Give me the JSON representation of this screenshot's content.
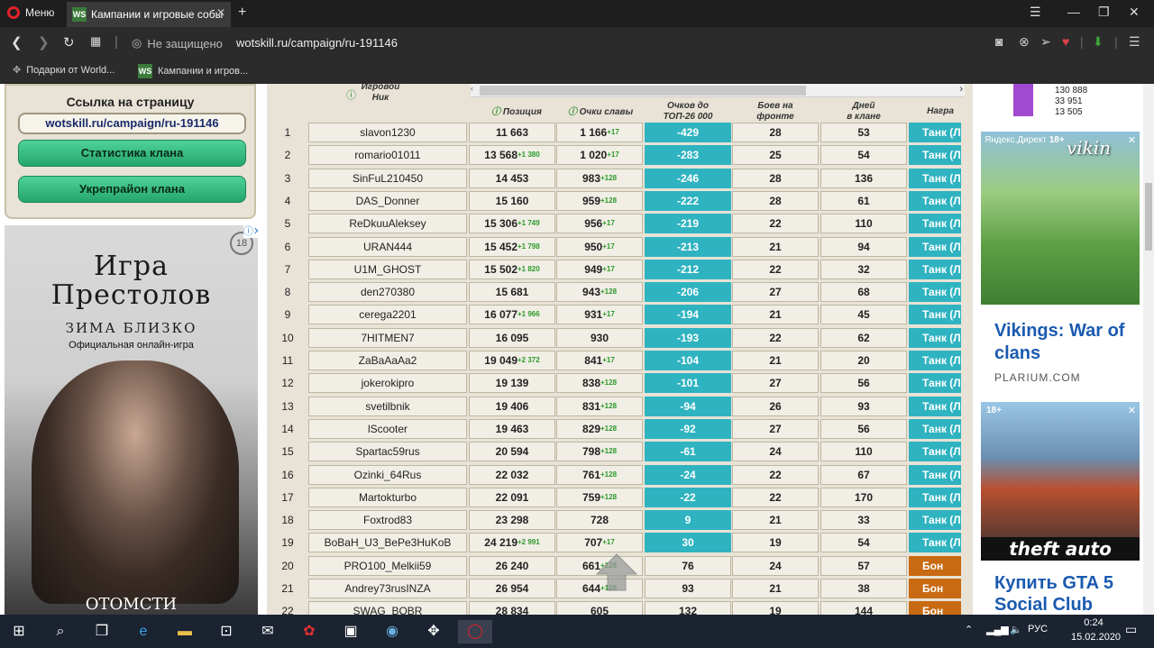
{
  "browser": {
    "menu_label": "Меню",
    "tab_title": "Кампании и игровые собы",
    "favicon_text": "WS",
    "security_label": "Не защищено",
    "url": "wotskill.ru/campaign/ru-191146",
    "bookmarks": [
      "Подарки от World...",
      "Кампании и игров..."
    ]
  },
  "left_panel": {
    "link_title": "Ссылка на страницу",
    "link_value": "wotskill.ru/campaign/ru-191146",
    "stats_button": "Статистика клана",
    "fortress_button": "Укрепрайон клана"
  },
  "ad_left": {
    "title_line1": "Игра",
    "title_line2": "Престолов",
    "subtitle": "ЗИМА БЛИЗКО",
    "tagline": "Официальная онлайн-игра",
    "bottom_text": "ОТОМСТИ",
    "age": "18"
  },
  "table": {
    "headers": {
      "nick": "Игровой\nНик",
      "position": "Позиция",
      "glory": "Очки славы",
      "to_top": "Очков до\nТОП-26 000",
      "battles": "Боев на\nфронте",
      "days": "Дней\nв клане",
      "award": "Награ"
    },
    "rows": [
      {
        "n": "1",
        "nick": "slavon1230",
        "pos": "11 663",
        "pos_d": "",
        "glory": "1 166",
        "glory_d": "+17",
        "top": "-429",
        "battles": "28",
        "days": "53",
        "award": "Танк (Л"
      },
      {
        "n": "2",
        "nick": "romario01011",
        "pos": "13 568",
        "pos_d": "+1 380",
        "glory": "1 020",
        "glory_d": "+17",
        "top": "-283",
        "battles": "25",
        "days": "54",
        "award": "Танк (Л"
      },
      {
        "n": "3",
        "nick": "SinFuL210450",
        "pos": "14 453",
        "pos_d": "",
        "glory": "983",
        "glory_d": "+128",
        "top": "-246",
        "battles": "28",
        "days": "136",
        "award": "Танк (Л"
      },
      {
        "n": "4",
        "nick": "DAS_Donner",
        "pos": "15 160",
        "pos_d": "",
        "glory": "959",
        "glory_d": "+128",
        "top": "-222",
        "battles": "28",
        "days": "61",
        "award": "Танк (Л"
      },
      {
        "n": "5",
        "nick": "ReDkuuAleksey",
        "pos": "15 306",
        "pos_d": "+1 749",
        "glory": "956",
        "glory_d": "+17",
        "top": "-219",
        "battles": "22",
        "days": "110",
        "award": "Танк (Л"
      },
      {
        "n": "6",
        "nick": "URAN444",
        "pos": "15 452",
        "pos_d": "+1 798",
        "glory": "950",
        "glory_d": "+17",
        "top": "-213",
        "battles": "21",
        "days": "94",
        "award": "Танк (Л"
      },
      {
        "n": "7",
        "nick": "U1M_GHOST",
        "pos": "15 502",
        "pos_d": "+1 820",
        "glory": "949",
        "glory_d": "+17",
        "top": "-212",
        "battles": "22",
        "days": "32",
        "award": "Танк (Л"
      },
      {
        "n": "8",
        "nick": "den270380",
        "pos": "15 681",
        "pos_d": "",
        "glory": "943",
        "glory_d": "+128",
        "top": "-206",
        "battles": "27",
        "days": "68",
        "award": "Танк (Л"
      },
      {
        "n": "9",
        "nick": "cerega2201",
        "pos": "16 077",
        "pos_d": "+1 966",
        "glory": "931",
        "glory_d": "+17",
        "top": "-194",
        "battles": "21",
        "days": "45",
        "award": "Танк (Л"
      },
      {
        "n": "10",
        "nick": "7HITMEN7",
        "pos": "16 095",
        "pos_d": "",
        "glory": "930",
        "glory_d": "",
        "top": "-193",
        "battles": "22",
        "days": "62",
        "award": "Танк (Л"
      },
      {
        "n": "11",
        "nick": "ZaBaAaAa2",
        "pos": "19 049",
        "pos_d": "+2 372",
        "glory": "841",
        "glory_d": "+17",
        "top": "-104",
        "battles": "21",
        "days": "20",
        "award": "Танк (Л"
      },
      {
        "n": "12",
        "nick": "jokerokipro",
        "pos": "19 139",
        "pos_d": "",
        "glory": "838",
        "glory_d": "+128",
        "top": "-101",
        "battles": "27",
        "days": "56",
        "award": "Танк (Л"
      },
      {
        "n": "13",
        "nick": "svetilbnik",
        "pos": "19 406",
        "pos_d": "",
        "glory": "831",
        "glory_d": "+128",
        "top": "-94",
        "battles": "26",
        "days": "93",
        "award": "Танк (Л"
      },
      {
        "n": "14",
        "nick": "lScooter",
        "pos": "19 463",
        "pos_d": "",
        "glory": "829",
        "glory_d": "+128",
        "top": "-92",
        "battles": "27",
        "days": "56",
        "award": "Танк (Л"
      },
      {
        "n": "15",
        "nick": "Spartac59rus",
        "pos": "20 594",
        "pos_d": "",
        "glory": "798",
        "glory_d": "+128",
        "top": "-61",
        "battles": "24",
        "days": "110",
        "award": "Танк (Л"
      },
      {
        "n": "16",
        "nick": "Ozinki_64Rus",
        "pos": "22 032",
        "pos_d": "",
        "glory": "761",
        "glory_d": "+128",
        "top": "-24",
        "battles": "22",
        "days": "67",
        "award": "Танк (Л"
      },
      {
        "n": "17",
        "nick": "Martokturbo",
        "pos": "22 091",
        "pos_d": "",
        "glory": "759",
        "glory_d": "+128",
        "top": "-22",
        "battles": "22",
        "days": "170",
        "award": "Танк (Л"
      },
      {
        "n": "18",
        "nick": "Foxtrod83",
        "pos": "23 298",
        "pos_d": "",
        "glory": "728",
        "glory_d": "",
        "top": "9",
        "battles": "21",
        "days": "33",
        "award": "Танк (Л"
      },
      {
        "n": "19",
        "nick": "BoBaH_U3_BePe3HuKoB",
        "pos": "24 219",
        "pos_d": "+2 991",
        "glory": "707",
        "glory_d": "+17",
        "top": "30",
        "battles": "19",
        "days": "54",
        "award": "Танк (Л"
      },
      {
        "n": "20",
        "nick": "PRO100_Melkii59",
        "pos": "26 240",
        "pos_d": "",
        "glory": "661",
        "glory_d": "+128",
        "top": "76",
        "battles": "24",
        "days": "57",
        "award": "Бон"
      },
      {
        "n": "21",
        "nick": "Andrey73rusINZA",
        "pos": "26 954",
        "pos_d": "",
        "glory": "644",
        "glory_d": "+128",
        "top": "93",
        "battles": "21",
        "days": "38",
        "award": "Бон"
      },
      {
        "n": "22",
        "nick": "SWAG_BOBR",
        "pos": "28 834",
        "pos_d": "",
        "glory": "605",
        "glory_d": "",
        "top": "132",
        "battles": "19",
        "days": "144",
        "award": "Бон"
      }
    ]
  },
  "right": {
    "stats": [
      "130 888",
      "33 951",
      "13 505"
    ],
    "vik_tag": "Яндекс.Директ",
    "vik_age": "18+",
    "vik_logo": "vikin",
    "vik_title": "Vikings: War of clans",
    "vik_site": "PLARIUM.COM",
    "gta_age": "18+",
    "gta_logo": "theft auto",
    "gta_title": "Купить GTA 5 Social Club"
  },
  "taskbar": {
    "lang": "РУС",
    "time": "0:24",
    "date": "15.02.2020"
  },
  "colors": {
    "teal": "#2fb3c0",
    "orange": "#c86a12",
    "green_btn": "#24a56b",
    "beige": "#e8e3d6"
  }
}
